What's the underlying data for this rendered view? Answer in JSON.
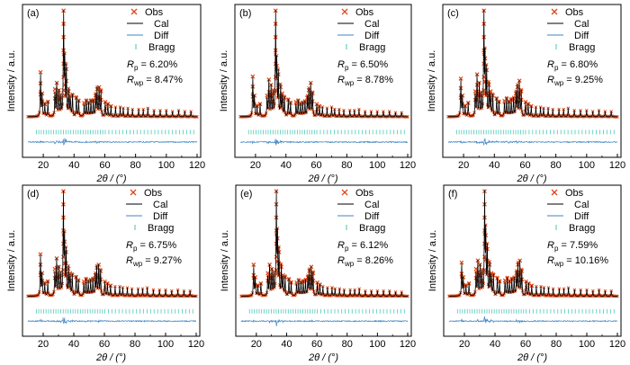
{
  "figure": {
    "common": {
      "xlabel": "2θ / (°)",
      "ylabel": "Intensity / a.u.",
      "xticks": [
        20,
        40,
        60,
        80,
        100,
        120
      ],
      "xlim": [
        10,
        120
      ],
      "legend": [
        "Obs",
        "Cal",
        "Diff",
        "Bragg"
      ]
    },
    "colors": {
      "obs": "#d94a1c",
      "cal": "#000000",
      "diff": "#3f86c6",
      "bragg": "#5fd0c0",
      "axes": "#000000"
    }
  },
  "chart_data": [
    {
      "type": "line",
      "panel": "(a)",
      "xlabel": "2θ / (°)",
      "ylabel": "Intensity / a.u.",
      "xlim": [
        10,
        120
      ],
      "series": [
        {
          "name": "Obs"
        },
        {
          "name": "Cal"
        },
        {
          "name": "Diff"
        },
        {
          "name": "Bragg"
        }
      ],
      "Rp": "6.20%",
      "Rwp": "8.47%",
      "peaks": [
        [
          18.2,
          0.42
        ],
        [
          19.3,
          0.22
        ],
        [
          21.0,
          0.12
        ],
        [
          23.0,
          0.14
        ],
        [
          27.6,
          0.26
        ],
        [
          28.8,
          0.32
        ],
        [
          30.2,
          0.25
        ],
        [
          31.5,
          0.18
        ],
        [
          33.2,
          1.0
        ],
        [
          34.0,
          0.5
        ],
        [
          35.0,
          0.45
        ],
        [
          36.5,
          0.24
        ],
        [
          37.6,
          0.2
        ],
        [
          39.0,
          0.2
        ],
        [
          41.5,
          0.18
        ],
        [
          43.0,
          0.15
        ],
        [
          46.6,
          0.13
        ],
        [
          48.0,
          0.15
        ],
        [
          49.5,
          0.13
        ],
        [
          51.0,
          0.15
        ],
        [
          52.5,
          0.15
        ],
        [
          54.0,
          0.2
        ],
        [
          55.0,
          0.26
        ],
        [
          56.3,
          0.28
        ],
        [
          57.5,
          0.24
        ],
        [
          60.3,
          0.14
        ],
        [
          62.0,
          0.12
        ],
        [
          64.0,
          0.1
        ],
        [
          67.0,
          0.09
        ],
        [
          70.0,
          0.09
        ],
        [
          72.0,
          0.08
        ],
        [
          75.0,
          0.08
        ],
        [
          78.0,
          0.07
        ],
        [
          82.0,
          0.07
        ],
        [
          85.0,
          0.07
        ],
        [
          88.0,
          0.08
        ],
        [
          92.0,
          0.06
        ],
        [
          96.0,
          0.06
        ],
        [
          100.0,
          0.06
        ],
        [
          104.0,
          0.05
        ],
        [
          108.0,
          0.06
        ],
        [
          112.0,
          0.05
        ],
        [
          116.0,
          0.05
        ]
      ]
    },
    {
      "type": "line",
      "panel": "(b)",
      "xlabel": "2θ / (°)",
      "ylabel": "Intensity / a.u.",
      "xlim": [
        10,
        120
      ],
      "series": [
        {
          "name": "Obs"
        },
        {
          "name": "Cal"
        },
        {
          "name": "Diff"
        },
        {
          "name": "Bragg"
        }
      ],
      "Rp": "6.50%",
      "Rwp": "8.78%",
      "peaks": [
        [
          18.2,
          0.38
        ],
        [
          19.3,
          0.2
        ],
        [
          21.0,
          0.1
        ],
        [
          23.0,
          0.12
        ],
        [
          27.6,
          0.2
        ],
        [
          28.8,
          0.35
        ],
        [
          30.2,
          0.3
        ],
        [
          31.5,
          0.22
        ],
        [
          33.2,
          1.0
        ],
        [
          34.0,
          0.48
        ],
        [
          35.0,
          0.4
        ],
        [
          36.5,
          0.28
        ],
        [
          37.6,
          0.22
        ],
        [
          39.0,
          0.18
        ],
        [
          41.5,
          0.16
        ],
        [
          43.0,
          0.13
        ],
        [
          46.6,
          0.14
        ],
        [
          48.0,
          0.15
        ],
        [
          49.5,
          0.12
        ],
        [
          51.0,
          0.13
        ],
        [
          52.5,
          0.14
        ],
        [
          54.0,
          0.18
        ],
        [
          55.0,
          0.25
        ],
        [
          56.3,
          0.32
        ],
        [
          57.5,
          0.22
        ],
        [
          60.3,
          0.12
        ],
        [
          62.0,
          0.1
        ],
        [
          64.0,
          0.09
        ],
        [
          67.0,
          0.08
        ],
        [
          70.0,
          0.09
        ],
        [
          72.0,
          0.07
        ],
        [
          75.0,
          0.07
        ],
        [
          78.0,
          0.06
        ],
        [
          82.0,
          0.06
        ],
        [
          85.0,
          0.06
        ],
        [
          88.0,
          0.07
        ],
        [
          92.0,
          0.05
        ],
        [
          96.0,
          0.05
        ],
        [
          100.0,
          0.05
        ],
        [
          104.0,
          0.05
        ],
        [
          108.0,
          0.05
        ],
        [
          112.0,
          0.04
        ],
        [
          116.0,
          0.04
        ]
      ]
    },
    {
      "type": "line",
      "panel": "(c)",
      "xlabel": "2θ / (°)",
      "ylabel": "Intensity / a.u.",
      "xlim": [
        10,
        120
      ],
      "series": [
        {
          "name": "Obs"
        },
        {
          "name": "Cal"
        },
        {
          "name": "Diff"
        },
        {
          "name": "Bragg"
        }
      ],
      "Rp": "6.80%",
      "Rwp": "9.25%",
      "peaks": [
        [
          18.2,
          0.36
        ],
        [
          19.3,
          0.2
        ],
        [
          21.0,
          0.1
        ],
        [
          23.0,
          0.13
        ],
        [
          27.6,
          0.24
        ],
        [
          28.8,
          0.4
        ],
        [
          30.2,
          0.32
        ],
        [
          31.5,
          0.2
        ],
        [
          33.2,
          1.0
        ],
        [
          34.0,
          0.55
        ],
        [
          35.0,
          0.44
        ],
        [
          36.5,
          0.3
        ],
        [
          37.6,
          0.24
        ],
        [
          39.0,
          0.2
        ],
        [
          41.5,
          0.17
        ],
        [
          43.0,
          0.14
        ],
        [
          46.6,
          0.15
        ],
        [
          48.0,
          0.17
        ],
        [
          49.5,
          0.14
        ],
        [
          51.0,
          0.16
        ],
        [
          52.5,
          0.17
        ],
        [
          54.0,
          0.22
        ],
        [
          55.0,
          0.28
        ],
        [
          56.3,
          0.34
        ],
        [
          57.5,
          0.24
        ],
        [
          60.3,
          0.14
        ],
        [
          62.0,
          0.12
        ],
        [
          64.0,
          0.1
        ],
        [
          67.0,
          0.09
        ],
        [
          70.0,
          0.09
        ],
        [
          72.0,
          0.08
        ],
        [
          75.0,
          0.08
        ],
        [
          78.0,
          0.07
        ],
        [
          82.0,
          0.07
        ],
        [
          85.0,
          0.07
        ],
        [
          88.0,
          0.08
        ],
        [
          92.0,
          0.06
        ],
        [
          96.0,
          0.06
        ],
        [
          100.0,
          0.06
        ],
        [
          104.0,
          0.05
        ],
        [
          108.0,
          0.06
        ],
        [
          112.0,
          0.05
        ],
        [
          116.0,
          0.05
        ]
      ]
    },
    {
      "type": "line",
      "panel": "(d)",
      "xlabel": "2θ / (°)",
      "ylabel": "Intensity / a.u.",
      "xlim": [
        10,
        120
      ],
      "series": [
        {
          "name": "Obs"
        },
        {
          "name": "Cal"
        },
        {
          "name": "Diff"
        },
        {
          "name": "Bragg"
        }
      ],
      "Rp": "6.75%",
      "Rwp": "9.27%",
      "peaks": [
        [
          18.2,
          0.4
        ],
        [
          19.3,
          0.22
        ],
        [
          21.0,
          0.12
        ],
        [
          23.0,
          0.14
        ],
        [
          27.6,
          0.26
        ],
        [
          28.8,
          0.36
        ],
        [
          30.2,
          0.28
        ],
        [
          31.5,
          0.2
        ],
        [
          33.2,
          1.0
        ],
        [
          34.0,
          0.52
        ],
        [
          35.0,
          0.42
        ],
        [
          36.5,
          0.26
        ],
        [
          37.6,
          0.22
        ],
        [
          39.0,
          0.2
        ],
        [
          41.5,
          0.18
        ],
        [
          43.0,
          0.15
        ],
        [
          46.6,
          0.14
        ],
        [
          48.0,
          0.16
        ],
        [
          49.5,
          0.14
        ],
        [
          51.0,
          0.15
        ],
        [
          52.5,
          0.16
        ],
        [
          54.0,
          0.2
        ],
        [
          55.0,
          0.27
        ],
        [
          56.3,
          0.3
        ],
        [
          57.5,
          0.24
        ],
        [
          60.3,
          0.14
        ],
        [
          62.0,
          0.12
        ],
        [
          64.0,
          0.1
        ],
        [
          67.0,
          0.09
        ],
        [
          70.0,
          0.09
        ],
        [
          72.0,
          0.08
        ],
        [
          75.0,
          0.08
        ],
        [
          78.0,
          0.07
        ],
        [
          82.0,
          0.07
        ],
        [
          85.0,
          0.07
        ],
        [
          88.0,
          0.08
        ],
        [
          92.0,
          0.06
        ],
        [
          96.0,
          0.06
        ],
        [
          100.0,
          0.06
        ],
        [
          104.0,
          0.05
        ],
        [
          108.0,
          0.06
        ],
        [
          112.0,
          0.05
        ],
        [
          116.0,
          0.05
        ]
      ]
    },
    {
      "type": "line",
      "panel": "(e)",
      "xlabel": "2θ / (°)",
      "ylabel": "Intensity / a.u.",
      "xlim": [
        10,
        120
      ],
      "series": [
        {
          "name": "Obs"
        },
        {
          "name": "Cal"
        },
        {
          "name": "Diff"
        },
        {
          "name": "Bragg"
        }
      ],
      "Rp": "6.12%",
      "Rwp": "8.26%",
      "peaks": [
        [
          18.2,
          0.3
        ],
        [
          19.3,
          0.18
        ],
        [
          21.0,
          0.1
        ],
        [
          23.0,
          0.12
        ],
        [
          27.6,
          0.22
        ],
        [
          28.8,
          0.3
        ],
        [
          30.2,
          0.26
        ],
        [
          31.5,
          0.2
        ],
        [
          33.2,
          1.0
        ],
        [
          34.0,
          0.55
        ],
        [
          35.0,
          0.42
        ],
        [
          36.5,
          0.28
        ],
        [
          37.6,
          0.2
        ],
        [
          39.0,
          0.18
        ],
        [
          41.5,
          0.16
        ],
        [
          43.0,
          0.13
        ],
        [
          46.6,
          0.13
        ],
        [
          48.0,
          0.15
        ],
        [
          49.5,
          0.13
        ],
        [
          51.0,
          0.14
        ],
        [
          52.5,
          0.15
        ],
        [
          54.0,
          0.18
        ],
        [
          55.0,
          0.24
        ],
        [
          56.3,
          0.28
        ],
        [
          57.5,
          0.22
        ],
        [
          60.3,
          0.13
        ],
        [
          62.0,
          0.11
        ],
        [
          64.0,
          0.09
        ],
        [
          67.0,
          0.08
        ],
        [
          70.0,
          0.08
        ],
        [
          72.0,
          0.07
        ],
        [
          75.0,
          0.07
        ],
        [
          78.0,
          0.06
        ],
        [
          82.0,
          0.06
        ],
        [
          85.0,
          0.06
        ],
        [
          88.0,
          0.07
        ],
        [
          92.0,
          0.05
        ],
        [
          96.0,
          0.05
        ],
        [
          100.0,
          0.05
        ],
        [
          104.0,
          0.05
        ],
        [
          108.0,
          0.05
        ],
        [
          112.0,
          0.04
        ],
        [
          116.0,
          0.04
        ]
      ]
    },
    {
      "type": "line",
      "panel": "(f)",
      "xlabel": "2θ / (°)",
      "ylabel": "Intensity / a.u.",
      "xlim": [
        10,
        120
      ],
      "series": [
        {
          "name": "Obs"
        },
        {
          "name": "Cal"
        },
        {
          "name": "Diff"
        },
        {
          "name": "Bragg"
        }
      ],
      "Rp": "7.59%",
      "Rwp": "10.16%",
      "peaks": [
        [
          18.2,
          0.32
        ],
        [
          19.3,
          0.18
        ],
        [
          21.0,
          0.1
        ],
        [
          23.0,
          0.12
        ],
        [
          27.6,
          0.26
        ],
        [
          28.8,
          0.34
        ],
        [
          30.2,
          0.3
        ],
        [
          31.5,
          0.22
        ],
        [
          33.2,
          1.0
        ],
        [
          34.0,
          0.58
        ],
        [
          35.0,
          0.45
        ],
        [
          36.5,
          0.3
        ],
        [
          37.6,
          0.22
        ],
        [
          39.0,
          0.2
        ],
        [
          41.5,
          0.17
        ],
        [
          43.0,
          0.14
        ],
        [
          46.6,
          0.15
        ],
        [
          48.0,
          0.17
        ],
        [
          49.5,
          0.14
        ],
        [
          51.0,
          0.16
        ],
        [
          52.5,
          0.17
        ],
        [
          54.0,
          0.22
        ],
        [
          55.0,
          0.3
        ],
        [
          56.3,
          0.34
        ],
        [
          57.5,
          0.24
        ],
        [
          60.3,
          0.14
        ],
        [
          62.0,
          0.12
        ],
        [
          64.0,
          0.1
        ],
        [
          67.0,
          0.09
        ],
        [
          70.0,
          0.09
        ],
        [
          72.0,
          0.08
        ],
        [
          75.0,
          0.08
        ],
        [
          78.0,
          0.07
        ],
        [
          82.0,
          0.07
        ],
        [
          85.0,
          0.07
        ],
        [
          88.0,
          0.08
        ],
        [
          92.0,
          0.06
        ],
        [
          96.0,
          0.06
        ],
        [
          100.0,
          0.06
        ],
        [
          104.0,
          0.05
        ],
        [
          108.0,
          0.06
        ],
        [
          112.0,
          0.05
        ],
        [
          116.0,
          0.05
        ]
      ]
    }
  ]
}
